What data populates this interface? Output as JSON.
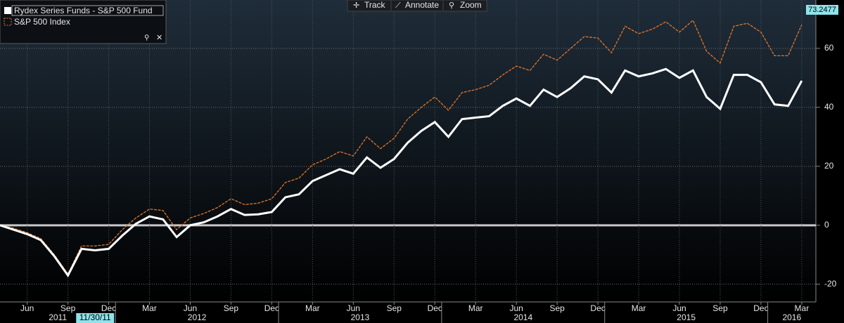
{
  "chart_data": {
    "type": "line",
    "toolbar": [
      "Track",
      "Annotate",
      "Zoom"
    ],
    "cursor_label": "11/30/11",
    "last_value_label": "73.2477",
    "categories": [
      null,
      null,
      "Jun",
      null,
      null,
      "Sep",
      null,
      null,
      "Dec",
      null,
      null,
      "Mar",
      null,
      null,
      "Jun",
      null,
      null,
      "Sep",
      null,
      null,
      "Dec",
      null,
      null,
      "Mar",
      null,
      null,
      "Jun",
      null,
      null,
      "Sep",
      null,
      null,
      "Dec",
      null,
      null,
      "Mar",
      null,
      null,
      "Jun",
      null,
      null,
      "Sep",
      null,
      null,
      "Dec",
      null,
      null,
      "Mar",
      null,
      null,
      "Jun",
      null,
      null,
      "Sep",
      null,
      null,
      "Dec",
      null,
      null,
      "Mar"
    ],
    "year_labels": [
      "2011",
      "2012",
      "2013",
      "2014",
      "2015",
      "2016"
    ],
    "series": [
      {
        "name": "Rydex Series Funds - S&P 500 Fund",
        "color": "#ffffff",
        "values": [
          0,
          -1.5,
          -3,
          -5,
          -10.5,
          -17,
          -8,
          -8.5,
          -8,
          -3.5,
          0.5,
          3,
          2,
          -4,
          0,
          1,
          3,
          5.5,
          3.5,
          3.7,
          4.5,
          9.5,
          10.5,
          15,
          17,
          19,
          17.5,
          23,
          19.5,
          22.5,
          28,
          32,
          35,
          30,
          36,
          36.5,
          37,
          40.5,
          43,
          40.5,
          46,
          43.5,
          46.5,
          50.5,
          49.5,
          45,
          52.5,
          50.5,
          51.5,
          53,
          50,
          52.5,
          43.5,
          39.5,
          51,
          51,
          48.5,
          41,
          40.5,
          49
        ]
      },
      {
        "name": "S&P 500 Index",
        "color": "#e0762a",
        "values": [
          0,
          -1,
          -2.5,
          -4.5,
          -10,
          -16.5,
          -7,
          -7,
          -6.5,
          -1.5,
          2.5,
          5.5,
          5,
          -1.5,
          2.5,
          4,
          6,
          9,
          7,
          7.5,
          9,
          14.5,
          16,
          20.5,
          22.5,
          25,
          23.5,
          30,
          26,
          29.5,
          36,
          40,
          43.5,
          39,
          45,
          46,
          47.5,
          51,
          54,
          52.5,
          58,
          56,
          60,
          64,
          63.5,
          58.5,
          67.5,
          65,
          66.5,
          69,
          65.5,
          69.5,
          59,
          55,
          67.5,
          68.5,
          65.5,
          57.5,
          57.5,
          68
        ]
      }
    ],
    "ylim": [
      -26,
      76.4
    ],
    "yticks": [
      -20,
      0,
      20,
      40,
      60
    ],
    "grid": true
  }
}
